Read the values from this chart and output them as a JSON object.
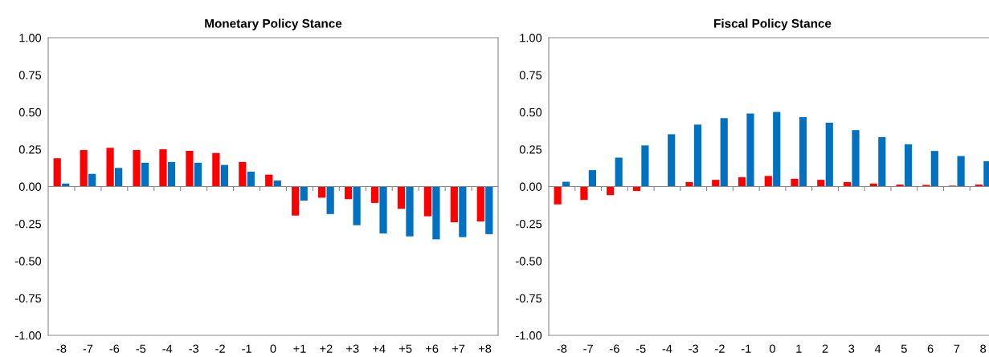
{
  "chart_data": [
    {
      "type": "bar",
      "title": "Monetary Policy Stance",
      "categories": [
        "-8",
        "-7",
        "-6",
        "-5",
        "-4",
        "-3",
        "-2",
        "-1",
        "0",
        "+1",
        "+2",
        "+3",
        "+4",
        "+5",
        "+6",
        "+7",
        "+8"
      ],
      "series": [
        {
          "color": "#ff0000",
          "values": [
            0.19,
            0.245,
            0.26,
            0.245,
            0.25,
            0.24,
            0.225,
            0.165,
            0.08,
            -0.195,
            -0.075,
            -0.085,
            -0.11,
            -0.15,
            -0.2,
            -0.24,
            -0.235
          ]
        },
        {
          "color": "#0070c0",
          "values": [
            0.02,
            0.085,
            0.125,
            0.16,
            0.165,
            0.16,
            0.145,
            0.1,
            0.04,
            -0.095,
            -0.185,
            -0.26,
            -0.315,
            -0.335,
            -0.355,
            -0.34,
            -0.32
          ]
        }
      ],
      "ylim": [
        -1,
        1
      ],
      "yticks": [
        {
          "value": -1,
          "label": "-1.00"
        },
        {
          "value": -0.75,
          "label": "-0.75"
        },
        {
          "value": -0.5,
          "label": "-0.50"
        },
        {
          "value": -0.25,
          "label": "-0.25"
        },
        {
          "value": 0,
          "label": "0.00"
        },
        {
          "value": 0.25,
          "label": "0.25"
        },
        {
          "value": 0.5,
          "label": "0.50"
        },
        {
          "value": 0.75,
          "label": "0.75"
        },
        {
          "value": 1,
          "label": "1.00"
        }
      ],
      "orientation": "vertical"
    },
    {
      "type": "bar",
      "title": "Fiscal Policy Stance",
      "categories": [
        "-8",
        "-7",
        "-6",
        "-5",
        "-4",
        "-3",
        "-2",
        "-1",
        "0",
        "1",
        "2",
        "3",
        "4",
        "5",
        "6",
        "7",
        "8"
      ],
      "series": [
        {
          "color": "#ff0000",
          "values": [
            -0.12,
            -0.09,
            -0.058,
            -0.03,
            0.0,
            0.03,
            0.045,
            0.063,
            0.071,
            0.052,
            0.045,
            0.03,
            0.02,
            0.013,
            0.011,
            0.006,
            0.013
          ]
        },
        {
          "color": "#0070c0",
          "values": [
            0.032,
            0.11,
            0.194,
            0.276,
            0.351,
            0.416,
            0.459,
            0.491,
            0.502,
            0.466,
            0.429,
            0.379,
            0.332,
            0.284,
            0.239,
            0.205,
            0.17
          ]
        }
      ],
      "ylim": [
        -1,
        1
      ],
      "yticks": [
        {
          "value": -1,
          "label": "-1.00"
        },
        {
          "value": -0.75,
          "label": "-0.75"
        },
        {
          "value": -0.5,
          "label": "-0.50"
        },
        {
          "value": -0.25,
          "label": "-0.25"
        },
        {
          "value": 0,
          "label": "0.00"
        },
        {
          "value": 0.25,
          "label": "0.25"
        },
        {
          "value": 0.5,
          "label": "0.50"
        },
        {
          "value": 0.75,
          "label": "0.75"
        },
        {
          "value": 1,
          "label": "1.00"
        }
      ],
      "orientation": "vertical"
    }
  ]
}
